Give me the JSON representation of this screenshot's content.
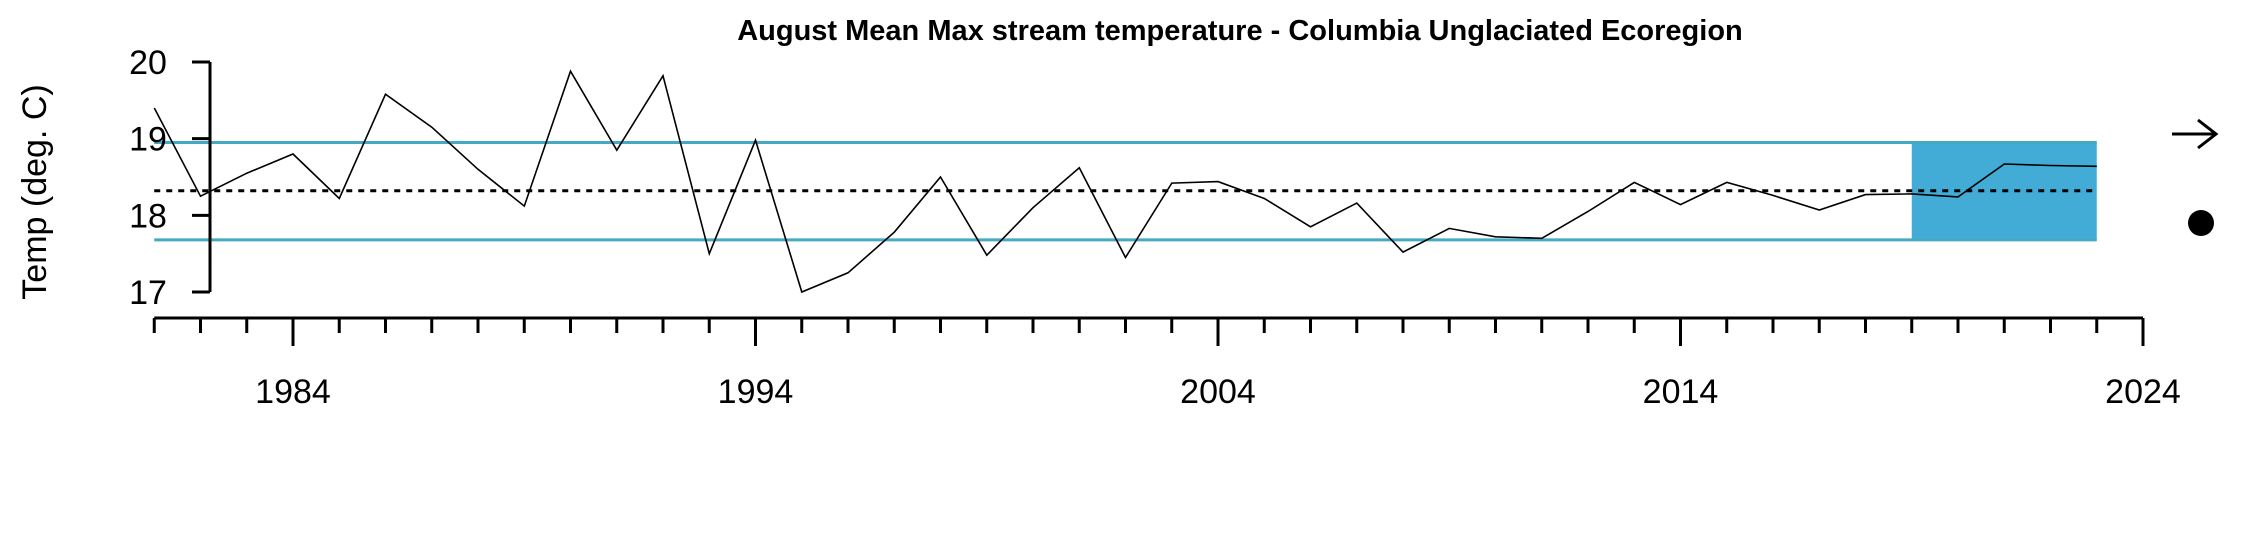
{
  "chart_data": {
    "type": "line",
    "title": "August Mean Max stream temperature - Columbia Unglaciated Ecoregion",
    "xlabel": "",
    "ylabel": "Temp (deg. C)",
    "xlim": [
      1981,
      2024
    ],
    "ylim": [
      17,
      20
    ],
    "x_ticks": [
      1984,
      1994,
      2004,
      2014,
      2024
    ],
    "y_ticks": [
      17,
      18,
      19,
      20
    ],
    "grid": false,
    "series": [
      {
        "color": "#000000",
        "x": [
          1981,
          1982,
          1983,
          1984,
          1985,
          1986,
          1987,
          1988,
          1989,
          1990,
          1991,
          1992,
          1993,
          1994,
          1995,
          1996,
          1997,
          1998,
          1999,
          2000,
          2001,
          2002,
          2003,
          2004,
          2005,
          2006,
          2007,
          2008,
          2009,
          2010,
          2011,
          2012,
          2013,
          2014,
          2015,
          2016,
          2017,
          2018,
          2019,
          2020,
          2021,
          2022,
          2023
        ],
        "values": [
          19.4,
          18.25,
          18.55,
          18.8,
          18.22,
          19.58,
          19.15,
          18.6,
          18.12,
          19.88,
          18.85,
          19.82,
          17.5,
          18.98,
          17.0,
          17.25,
          17.78,
          18.5,
          17.48,
          18.1,
          18.62,
          17.45,
          18.42,
          18.44,
          18.22,
          17.85,
          18.16,
          17.52,
          17.83,
          17.72,
          17.7,
          18.05,
          18.43,
          18.14,
          18.43,
          18.26,
          18.07,
          18.27,
          18.28,
          18.24,
          18.67,
          18.65,
          18.64
        ]
      }
    ],
    "reference_lines": [
      {
        "value": 18.95,
        "style": "solid",
        "color": "#45a9c4"
      },
      {
        "value": 18.32,
        "style": "dotted",
        "color": "#000000"
      },
      {
        "value": 17.68,
        "style": "solid",
        "color": "#45a9c4"
      }
    ],
    "highlight_box": {
      "x": [
        2019,
        2023
      ],
      "y": [
        17.68,
        18.95
      ],
      "color": "#42acd6"
    },
    "trend_indicators": {
      "arrow_icon": "arrow-right-icon",
      "dot_icon": "filled-circle-icon"
    }
  }
}
